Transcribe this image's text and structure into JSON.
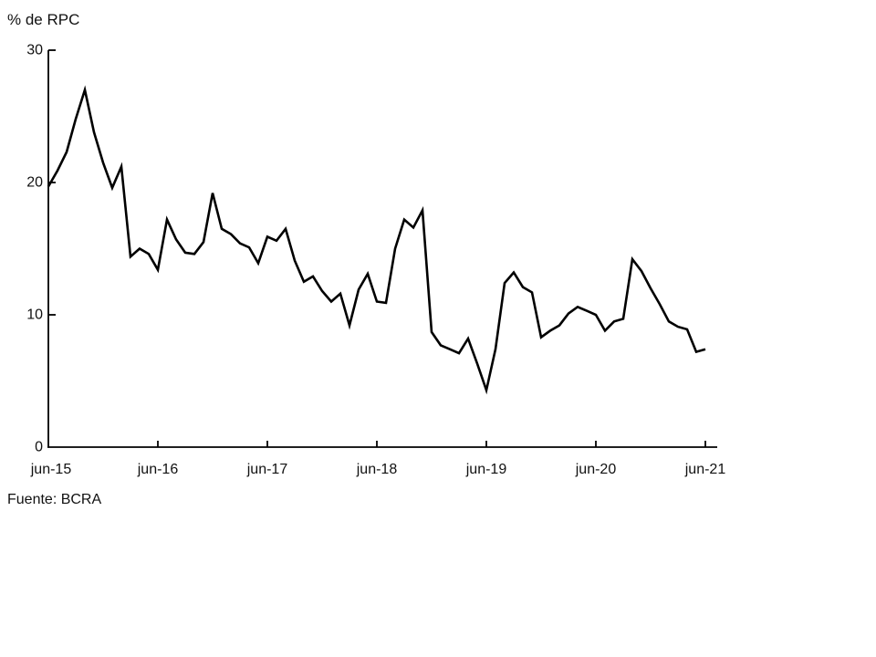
{
  "page": {
    "background": "#ffffff"
  },
  "chart": {
    "title": "% de RPC",
    "source": "Fuente: BCRA"
  },
  "chart_data": {
    "type": "line",
    "title": "% de RPC",
    "xlabel": "",
    "ylabel": "% de RPC",
    "source": "Fuente: BCRA",
    "frequency": "monthly",
    "x": [
      "jun-15",
      "jul-15",
      "ago-15",
      "sep-15",
      "oct-15",
      "nov-15",
      "dic-15",
      "ene-16",
      "feb-16",
      "mar-16",
      "abr-16",
      "may-16",
      "jun-16",
      "jul-16",
      "ago-16",
      "sep-16",
      "oct-16",
      "nov-16",
      "dic-16",
      "ene-17",
      "feb-17",
      "mar-17",
      "abr-17",
      "may-17",
      "jun-17",
      "jul-17",
      "ago-17",
      "sep-17",
      "oct-17",
      "nov-17",
      "dic-17",
      "ene-18",
      "feb-18",
      "mar-18",
      "abr-18",
      "may-18",
      "jun-18",
      "jul-18",
      "ago-18",
      "sep-18",
      "oct-18",
      "nov-18",
      "dic-18",
      "ene-19",
      "feb-19",
      "mar-19",
      "abr-19",
      "may-19",
      "jun-19",
      "jul-19",
      "ago-19",
      "sep-19",
      "oct-19",
      "nov-19",
      "dic-19",
      "ene-20",
      "feb-20",
      "mar-20",
      "abr-20",
      "may-20",
      "jun-20",
      "jul-20",
      "ago-20",
      "sep-20",
      "oct-20",
      "nov-20",
      "dic-20",
      "ene-21",
      "feb-21",
      "mar-21",
      "abr-21",
      "may-21",
      "jun-21"
    ],
    "values": [
      19.7,
      20.9,
      22.3,
      24.8,
      27.0,
      23.8,
      21.5,
      19.6,
      21.2,
      14.4,
      15.0,
      14.6,
      13.4,
      17.2,
      15.7,
      14.7,
      14.6,
      15.5,
      19.2,
      16.5,
      16.1,
      15.4,
      15.1,
      13.9,
      15.9,
      15.6,
      16.5,
      14.1,
      12.5,
      12.9,
      11.8,
      11.0,
      11.6,
      9.2,
      11.9,
      13.1,
      11.0,
      10.9,
      15.0,
      17.2,
      16.6,
      17.9,
      8.7,
      7.7,
      7.4,
      7.1,
      8.2,
      6.3,
      4.3,
      7.4,
      12.4,
      13.2,
      12.1,
      11.7,
      8.3,
      8.8,
      9.2,
      10.1,
      10.6,
      10.3,
      10.0,
      8.8,
      9.5,
      9.7,
      14.2,
      13.3,
      12.0,
      10.8,
      9.5,
      9.1,
      8.9,
      7.2,
      7.4
    ],
    "x_tick_labels": [
      "jun-15",
      "jun-16",
      "jun-17",
      "jun-18",
      "jun-19",
      "jun-20",
      "jun-21"
    ],
    "y_ticks": [
      0,
      10,
      20,
      30
    ],
    "ylim": [
      0,
      30
    ],
    "grid": false,
    "legend": "none",
    "line_color": "#000000",
    "axis_color": "#000000",
    "text_color": "#111111"
  }
}
